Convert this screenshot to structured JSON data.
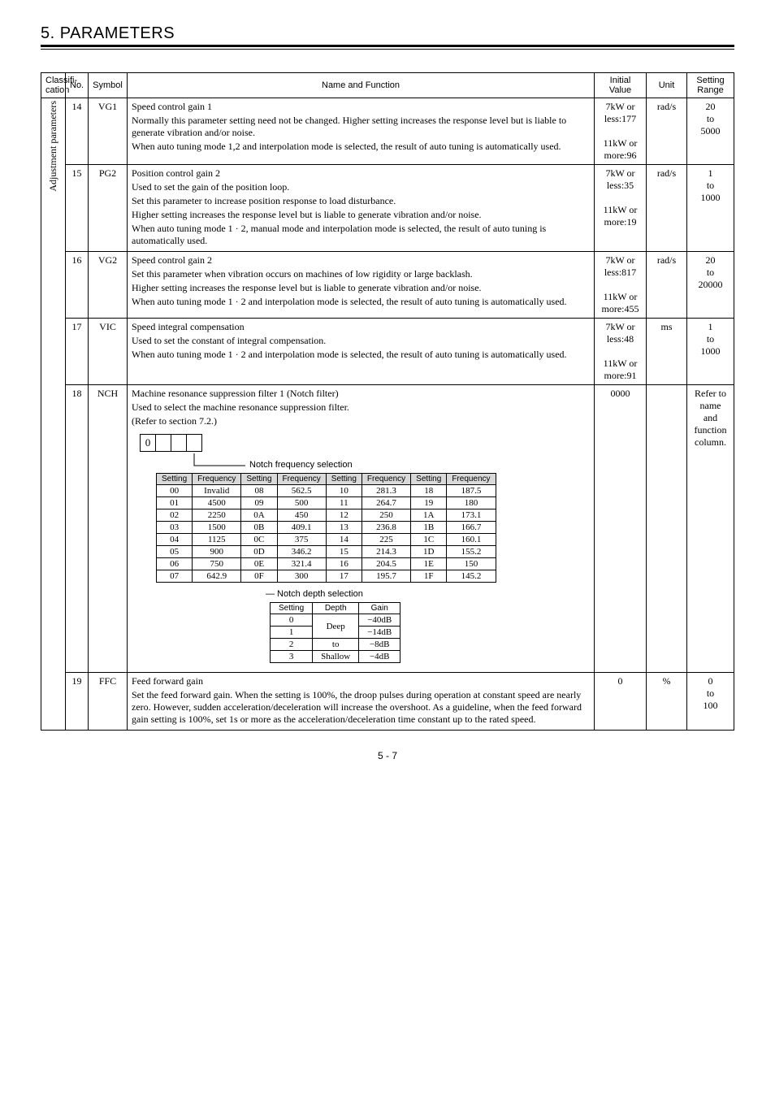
{
  "page": {
    "title": "5. PARAMETERS",
    "footer": "5 - 7"
  },
  "headers": {
    "classification": "Classifi-\ncation",
    "no": "No.",
    "symbol": "Symbol",
    "name_func": "Name and Function",
    "initial": "Initial\nValue",
    "unit": "Unit",
    "range": "Setting\nRange"
  },
  "classification_label": "Adjustment parameters",
  "rows": [
    {
      "no": "14",
      "symbol": "VG1",
      "func": [
        "Speed control gain 1",
        "Normally this parameter setting need not be changed. Higher setting increases the response level but is liable to generate vibration and/or noise.",
        "When auto tuning mode 1,2 and interpolation mode is selected, the result of auto tuning is automatically used."
      ],
      "initial": [
        "7kW or",
        "less:177",
        "",
        "11kW or",
        "more:96"
      ],
      "unit": "rad/s",
      "range": [
        "20",
        "to",
        "5000"
      ]
    },
    {
      "no": "15",
      "symbol": "PG2",
      "func": [
        "Position control gain 2",
        "Used to set the gain of the position loop.",
        "Set this parameter to increase position response to load disturbance.",
        "Higher setting increases the response level but is liable to generate vibration and/or noise.",
        "When auto tuning mode 1 · 2, manual mode and interpolation mode is selected, the result of auto tuning is automatically used."
      ],
      "initial": [
        "7kW or",
        "less:35",
        "",
        "11kW or",
        "more:19"
      ],
      "unit": "rad/s",
      "range": [
        "1",
        "to",
        "1000"
      ]
    },
    {
      "no": "16",
      "symbol": "VG2",
      "func": [
        "Speed control gain 2",
        "Set this parameter when vibration occurs on machines of low rigidity or large backlash.",
        "Higher setting increases the response level but is liable to generate vibration and/or noise.",
        "When auto tuning mode 1 · 2 and interpolation mode is selected, the result of auto tuning is automatically used."
      ],
      "initial": [
        "7kW or",
        "less:817",
        "",
        "11kW or",
        "more:455"
      ],
      "unit": "rad/s",
      "range": [
        "20",
        "to",
        "20000"
      ]
    },
    {
      "no": "17",
      "symbol": "VIC",
      "func": [
        "Speed integral compensation",
        "Used to set the constant of integral compensation.",
        "When auto tuning mode 1 · 2 and interpolation mode is selected, the result of auto tuning is automatically used."
      ],
      "initial": [
        "7kW or",
        "less:48",
        "",
        "11kW or",
        "more:91"
      ],
      "unit": "ms",
      "range": [
        "1",
        "to",
        "1000"
      ]
    },
    {
      "no": "18",
      "symbol": "NCH",
      "func_head": [
        "Machine resonance suppression filter 1 (Notch filter)",
        "Used to select the machine resonance suppression filter.",
        "(Refer to section 7.2.)"
      ],
      "digit0": "0",
      "freq_label": "Notch frequency selection",
      "depth_label": "Notch depth selection",
      "freq_headers": [
        "Setting",
        "Frequency",
        "Setting",
        "Frequency",
        "Setting",
        "Frequency",
        "Setting",
        "Frequency"
      ],
      "freq_rows": [
        [
          "00",
          "Invalid",
          "08",
          "562.5",
          "10",
          "281.3",
          "18",
          "187.5"
        ],
        [
          "01",
          "4500",
          "09",
          "500",
          "11",
          "264.7",
          "19",
          "180"
        ],
        [
          "02",
          "2250",
          "0A",
          "450",
          "12",
          "250",
          "1A",
          "173.1"
        ],
        [
          "03",
          "1500",
          "0B",
          "409.1",
          "13",
          "236.8",
          "1B",
          "166.7"
        ],
        [
          "04",
          "1125",
          "0C",
          "375",
          "14",
          "225",
          "1C",
          "160.1"
        ],
        [
          "05",
          "900",
          "0D",
          "346.2",
          "15",
          "214.3",
          "1D",
          "155.2"
        ],
        [
          "06",
          "750",
          "0E",
          "321.4",
          "16",
          "204.5",
          "1E",
          "150"
        ],
        [
          "07",
          "642.9",
          "0F",
          "300",
          "17",
          "195.7",
          "1F",
          "145.2"
        ]
      ],
      "depth_headers": [
        "Setting",
        "Depth",
        "Gain"
      ],
      "depth_rows": [
        [
          "0",
          "Deep",
          "−40dB"
        ],
        [
          "1",
          "",
          "−14dB"
        ],
        [
          "2",
          "to",
          "−8dB"
        ],
        [
          "3",
          "Shallow",
          "−4dB"
        ]
      ],
      "initial": [
        "0000"
      ],
      "unit": "",
      "range": [
        "Refer to",
        "name",
        "and",
        "function",
        "column."
      ]
    },
    {
      "no": "19",
      "symbol": "FFC",
      "func": [
        "Feed forward gain",
        "Set the feed forward gain. When the setting is 100%, the droop pulses during operation at constant speed are nearly zero. However, sudden acceleration/deceleration will increase the overshoot. As a guideline, when the feed forward gain setting is 100%, set 1s or more as the acceleration/deceleration time constant up to the rated speed."
      ],
      "initial": [
        "0"
      ],
      "unit": "%",
      "range": [
        "0",
        "to",
        "100"
      ]
    }
  ]
}
